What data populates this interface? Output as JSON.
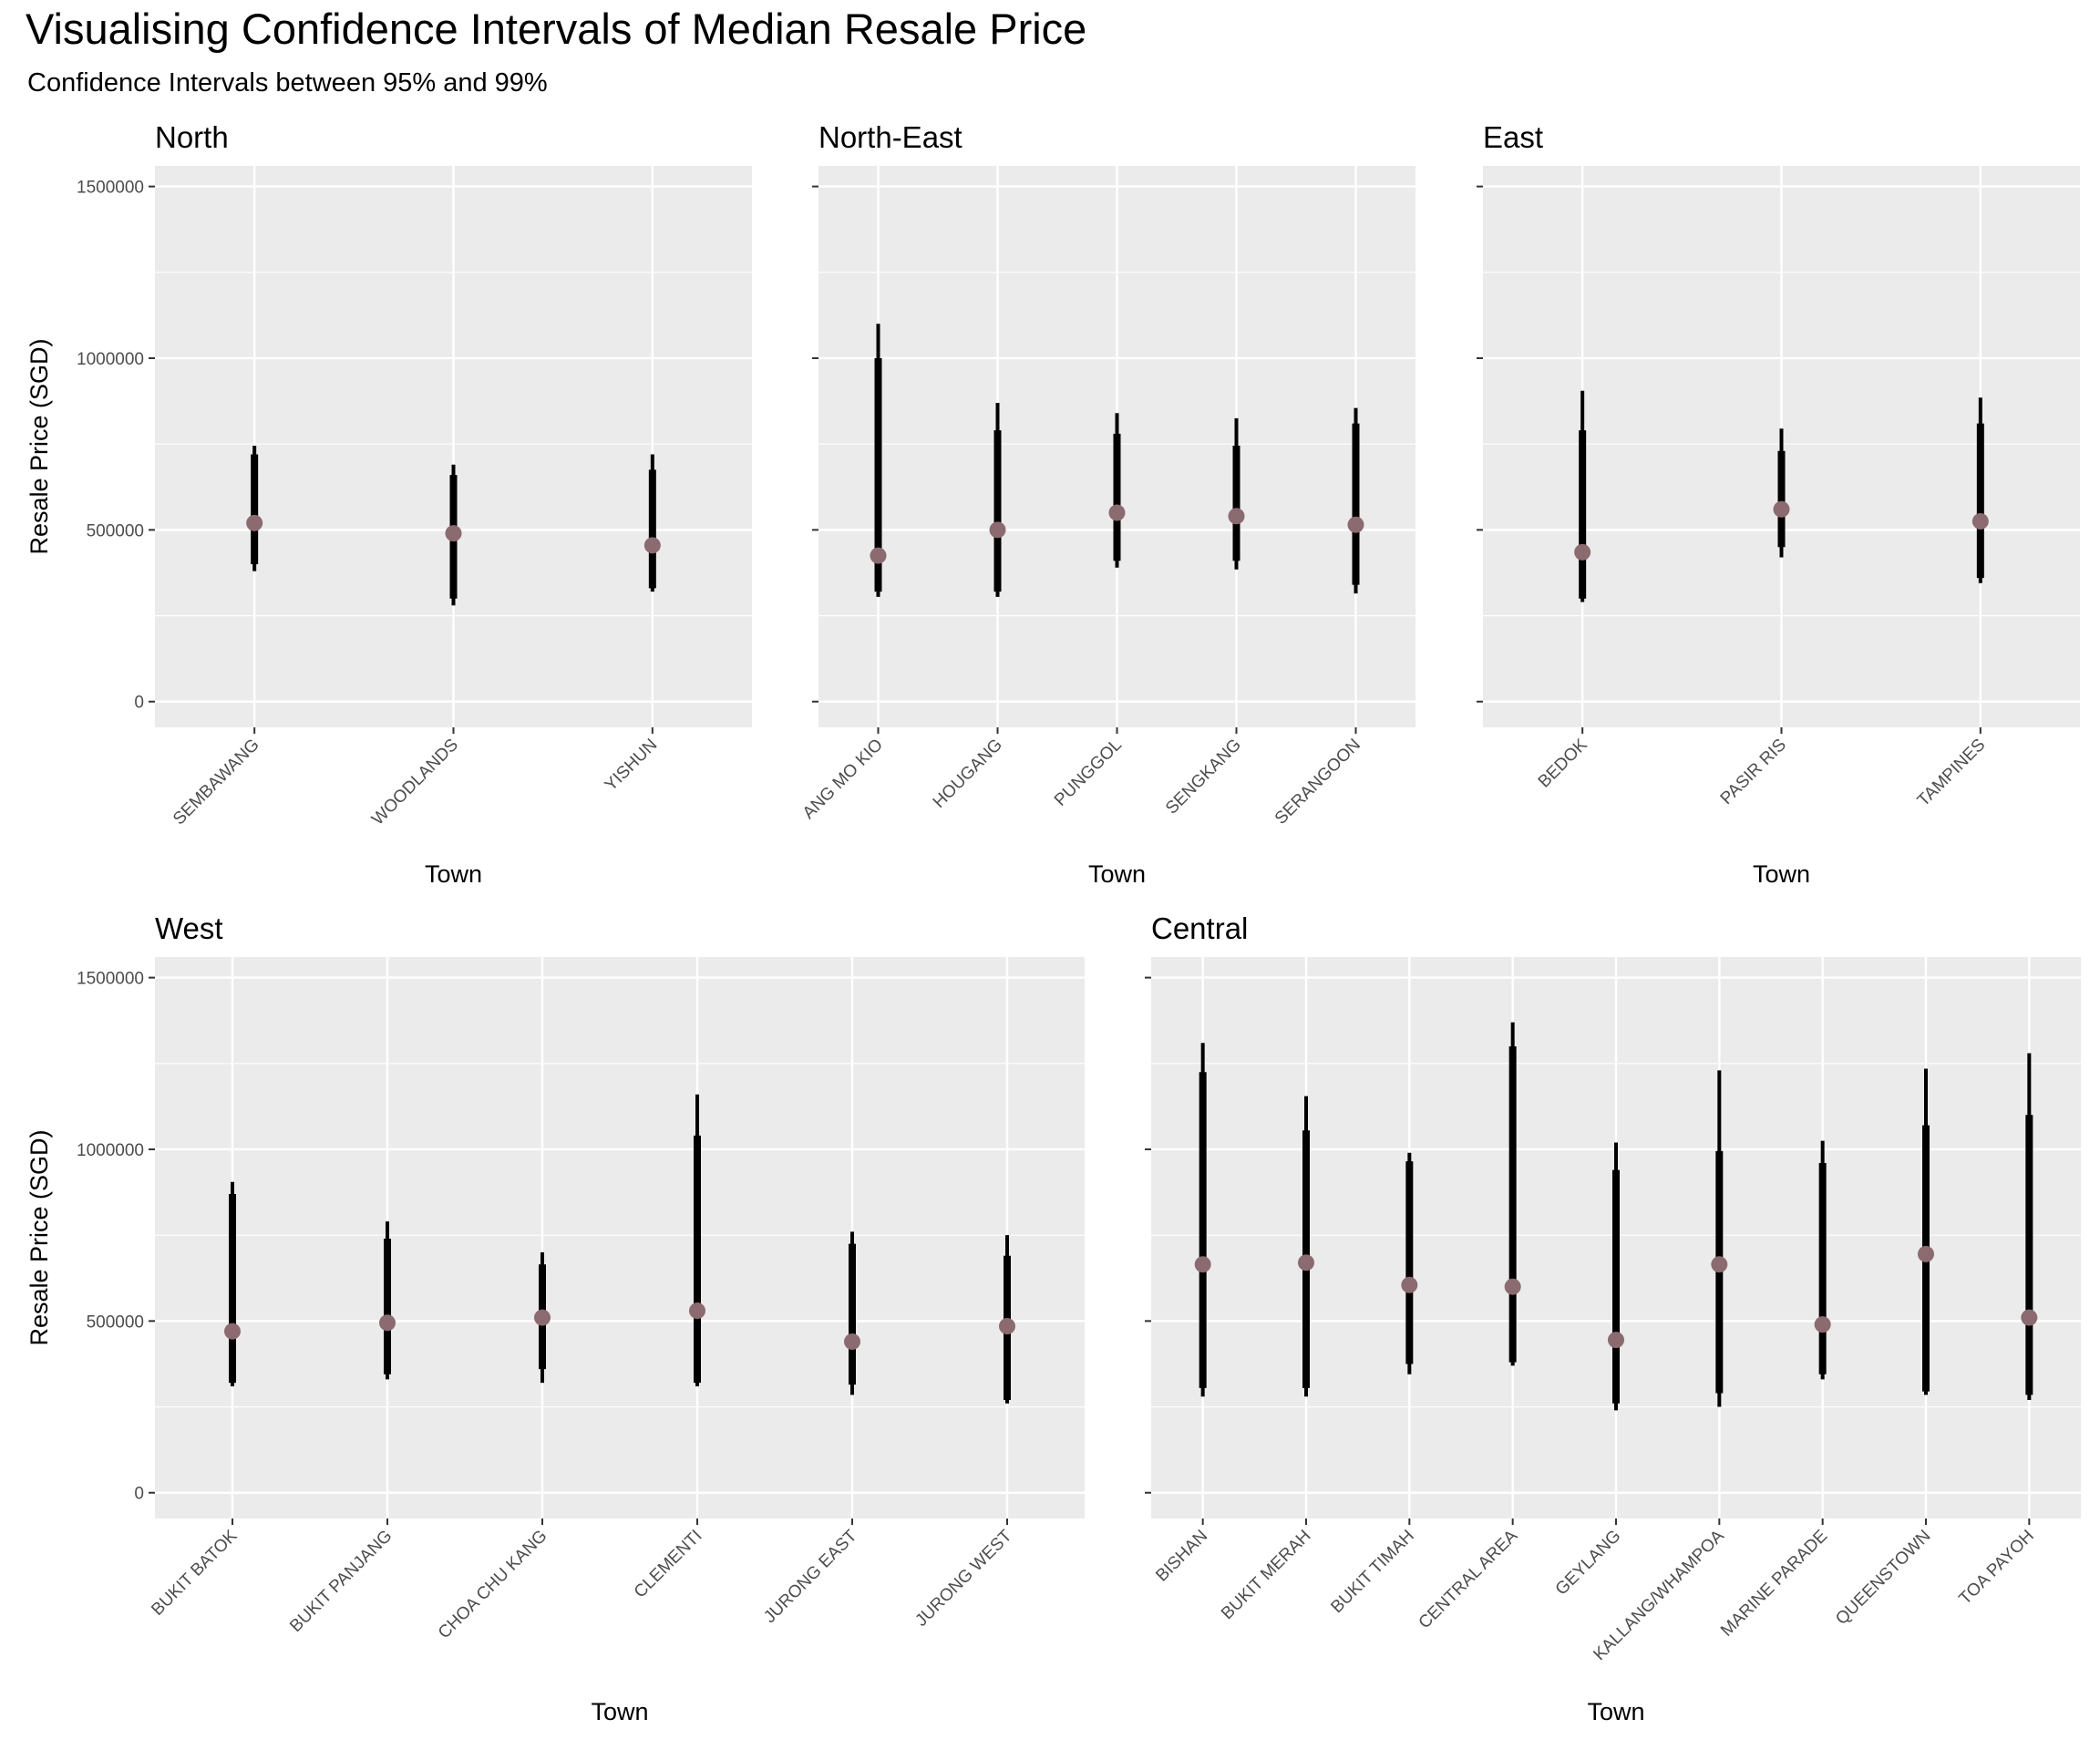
{
  "chart_data": {
    "type": "errorbar",
    "title": "Visualising Confidence Intervals of Median Resale Price",
    "subtitle": "Confidence Intervals between 95% and 99%",
    "xlabel": "Town",
    "ylabel": "Resale Price (SGD)",
    "ylim": [
      -75000,
      1560000
    ],
    "y_ticks": [
      0,
      500000,
      1000000,
      1500000
    ],
    "y_tick_labels": [
      "0",
      "500000",
      "1000000",
      "1500000"
    ],
    "point_color": "#8B6A70",
    "bar_color": "#000000",
    "panel_background": "#EBEBEB",
    "grid": true,
    "panels": [
      {
        "name": "North",
        "towns": [
          {
            "town": "SEMBAWANG",
            "median": 520000,
            "ci95": [
              400000,
              720000
            ],
            "ci99": [
              380000,
              745000
            ]
          },
          {
            "town": "WOODLANDS",
            "median": 490000,
            "ci95": [
              300000,
              660000
            ],
            "ci99": [
              280000,
              690000
            ]
          },
          {
            "town": "YISHUN",
            "median": 455000,
            "ci95": [
              330000,
              675000
            ],
            "ci99": [
              320000,
              720000
            ]
          }
        ]
      },
      {
        "name": "North-East",
        "towns": [
          {
            "town": "ANG MO KIO",
            "median": 425000,
            "ci95": [
              320000,
              1000000
            ],
            "ci99": [
              305000,
              1100000
            ]
          },
          {
            "town": "HOUGANG",
            "median": 500000,
            "ci95": [
              320000,
              790000
            ],
            "ci99": [
              305000,
              870000
            ]
          },
          {
            "town": "PUNGGOL",
            "median": 550000,
            "ci95": [
              410000,
              780000
            ],
            "ci99": [
              390000,
              840000
            ]
          },
          {
            "town": "SENGKANG",
            "median": 540000,
            "ci95": [
              410000,
              745000
            ],
            "ci99": [
              385000,
              825000
            ]
          },
          {
            "town": "SERANGOON",
            "median": 515000,
            "ci95": [
              340000,
              810000
            ],
            "ci99": [
              315000,
              855000
            ]
          }
        ]
      },
      {
        "name": "East",
        "towns": [
          {
            "town": "BEDOK",
            "median": 435000,
            "ci95": [
              300000,
              790000
            ],
            "ci99": [
              290000,
              905000
            ]
          },
          {
            "town": "PASIR RIS",
            "median": 560000,
            "ci95": [
              450000,
              730000
            ],
            "ci99": [
              420000,
              795000
            ]
          },
          {
            "town": "TAMPINES",
            "median": 525000,
            "ci95": [
              360000,
              810000
            ],
            "ci99": [
              345000,
              885000
            ]
          }
        ]
      },
      {
        "name": "West",
        "towns": [
          {
            "town": "BUKIT BATOK",
            "median": 470000,
            "ci95": [
              320000,
              870000
            ],
            "ci99": [
              310000,
              905000
            ]
          },
          {
            "town": "BUKIT PANJANG",
            "median": 495000,
            "ci95": [
              345000,
              740000
            ],
            "ci99": [
              330000,
              790000
            ]
          },
          {
            "town": "CHOA CHU KANG",
            "median": 510000,
            "ci95": [
              360000,
              665000
            ],
            "ci99": [
              320000,
              700000
            ]
          },
          {
            "town": "CLEMENTI",
            "median": 530000,
            "ci95": [
              320000,
              1040000
            ],
            "ci99": [
              310000,
              1160000
            ]
          },
          {
            "town": "JURONG EAST",
            "median": 440000,
            "ci95": [
              315000,
              725000
            ],
            "ci99": [
              285000,
              760000
            ]
          },
          {
            "town": "JURONG WEST",
            "median": 485000,
            "ci95": [
              270000,
              690000
            ],
            "ci99": [
              260000,
              750000
            ]
          }
        ]
      },
      {
        "name": "Central",
        "towns": [
          {
            "town": "BISHAN",
            "median": 665000,
            "ci95": [
              305000,
              1225000
            ],
            "ci99": [
              280000,
              1310000
            ]
          },
          {
            "town": "BUKIT MERAH",
            "median": 670000,
            "ci95": [
              305000,
              1055000
            ],
            "ci99": [
              280000,
              1155000
            ]
          },
          {
            "town": "BUKIT TIMAH",
            "median": 605000,
            "ci95": [
              375000,
              965000
            ],
            "ci99": [
              345000,
              990000
            ]
          },
          {
            "town": "CENTRAL AREA",
            "median": 600000,
            "ci95": [
              380000,
              1300000
            ],
            "ci99": [
              370000,
              1370000
            ]
          },
          {
            "town": "GEYLANG",
            "median": 445000,
            "ci95": [
              260000,
              940000
            ],
            "ci99": [
              240000,
              1020000
            ]
          },
          {
            "town": "KALLANG/WHAMPOA",
            "median": 665000,
            "ci95": [
              290000,
              995000
            ],
            "ci99": [
              250000,
              1230000
            ]
          },
          {
            "town": "MARINE PARADE",
            "median": 490000,
            "ci95": [
              345000,
              960000
            ],
            "ci99": [
              330000,
              1025000
            ]
          },
          {
            "town": "QUEENSTOWN",
            "median": 695000,
            "ci95": [
              295000,
              1070000
            ],
            "ci99": [
              285000,
              1235000
            ]
          },
          {
            "town": "TOA PAYOH",
            "median": 510000,
            "ci95": [
              285000,
              1100000
            ],
            "ci99": [
              270000,
              1280000
            ]
          }
        ]
      }
    ]
  }
}
